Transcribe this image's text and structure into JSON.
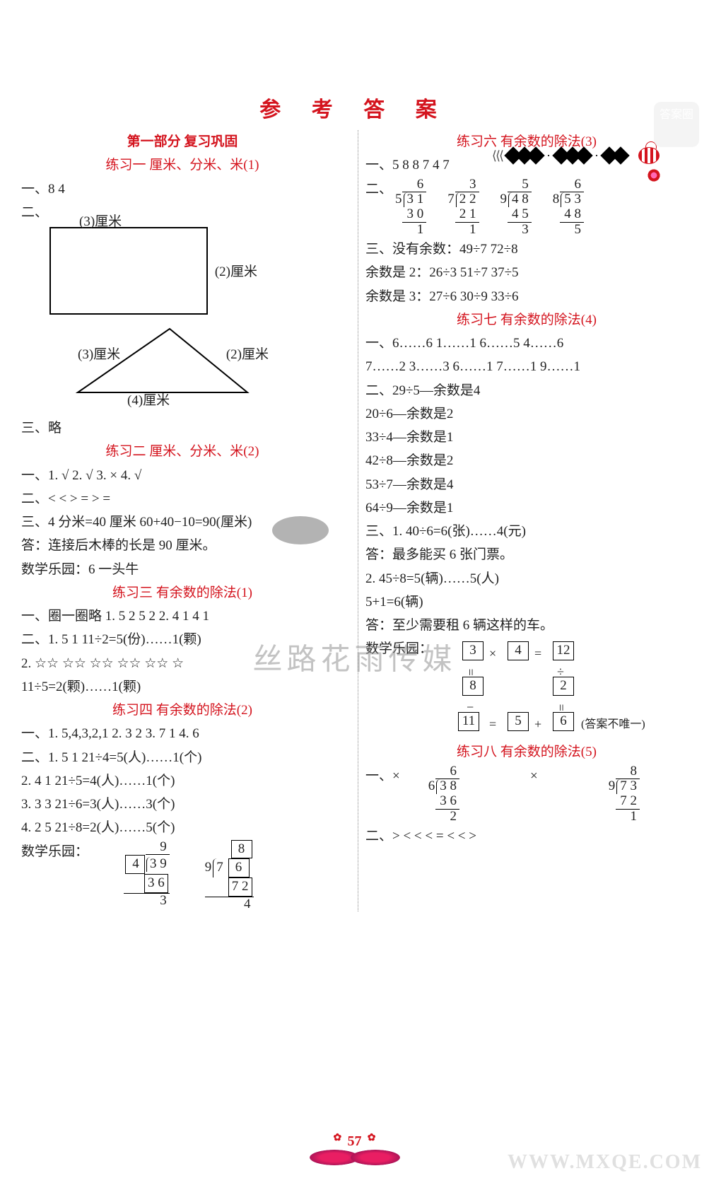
{
  "page": {
    "number": "57",
    "title": "参 考 答 案"
  },
  "watermarks": {
    "center": "丝路花雨传媒",
    "bottom_right": "WWW.MXQE.COM",
    "top_right": "答案圈"
  },
  "left": {
    "part_title": "第一部分  复习巩固",
    "ex1": {
      "title": "练习一  厘米、分米、米(1)",
      "l1": "一、8  4",
      "l2": "二、",
      "rect_top": "(3)厘米",
      "rect_right": "(2)厘米",
      "tri_left": "(3)厘米",
      "tri_right": "(2)厘米",
      "tri_bottom": "(4)厘米",
      "l3": "三、略"
    },
    "ex2": {
      "title": "练习二  厘米、分米、米(2)",
      "l1": "一、1. √  2. √  3. ×  4. √",
      "l2": "二、<  <  >  =  >  =",
      "l3": "三、4 分米=40 厘米  60+40−10=90(厘米)",
      "l4": "答：连接后木棒的长是 90 厘米。",
      "l5": "数学乐园：6  一头牛"
    },
    "ex3": {
      "title": "练习三  有余数的除法(1)",
      "l1": "一、圈一圈略  1. 5  2  5  2  2. 4  1  4  1",
      "l2": "二、1. 5  1  11÷2=5(份)……1(颗)",
      "l3": "2. ☆☆  ☆☆  ☆☆  ☆☆  ☆☆  ☆",
      "l4": "11÷5=2(颗)……1(颗)"
    },
    "ex4": {
      "title": "练习四  有余数的除法(2)",
      "l1": "一、1. 5,4,3,2,1  2. 3  2  3. 7  1  4. 6",
      "l2": "二、1. 5  1  21÷4=5(人)……1(个)",
      "l3": "2. 4  1  21÷5=4(人)……1(个)",
      "l4": "3. 3  3  21÷6=3(人)……3(个)",
      "l5": "4. 2  5  21÷8=2(人)……5(个)",
      "l6": "数学乐园：",
      "ld1": {
        "q": "9",
        "dvs": "4",
        "dvd": "3 9",
        "sub": "3 6",
        "rem": "3",
        "boxed_dvs": true,
        "boxed_sub": true
      },
      "ld2": {
        "q": "8",
        "dvs": "9",
        "dvd": "7 6",
        "sub": "7 2",
        "rem": "4",
        "boxed_q": true,
        "boxed_dvd_last": true,
        "boxed_sub": true
      }
    }
  },
  "right": {
    "ex6": {
      "title": "练习六  有余数的除法(3)",
      "l1": "一、5  8  8  7  4  7",
      "l2": "二、",
      "divs": [
        {
          "q": "6",
          "dvs": "5",
          "dvd": "3 1",
          "sub": "3 0",
          "rem": "1"
        },
        {
          "q": "3",
          "dvs": "7",
          "dvd": "2 2",
          "sub": "2 1",
          "rem": "1"
        },
        {
          "q": "5",
          "dvs": "9",
          "dvd": "4 8",
          "sub": "4 5",
          "rem": "3"
        },
        {
          "q": "6",
          "dvs": "8",
          "dvd": "5 3",
          "sub": "4 8",
          "rem": "5"
        }
      ],
      "l3": "三、没有余数：49÷7  72÷8",
      "l4": "余数是 2：26÷3  51÷7  37÷5",
      "l5": "余数是 3：27÷6  30÷9  33÷6"
    },
    "ex7": {
      "title": "练习七  有余数的除法(4)",
      "l1": "一、6……6  1……1  6……5  4……6",
      "l2": "7……2  3……3  6……1  7……1  9……1",
      "l3": "二、29÷5—余数是4",
      "l4": "20÷6—余数是2",
      "l5": "33÷4—余数是1",
      "l6": "42÷8—余数是2",
      "l7": "53÷7—余数是4",
      "l8": "64÷9—余数是1",
      "l9": "三、1. 40÷6=6(张)……4(元)",
      "l10": "答：最多能买 6 张门票。",
      "l11": "2. 45÷8=5(辆)……5(人)",
      "l12": "5+1=6(辆)",
      "l13": "答：至少需要租 6 辆这样的车。",
      "l14": "数学乐园：",
      "puzzle": {
        "a": "3",
        "b": "4",
        "c": "12",
        "d": "8",
        "e": "2",
        "f": "11",
        "g": "5",
        "h": "6",
        "note": "(答案不唯一)"
      }
    },
    "ex8": {
      "title": "练习八  有余数的除法(5)",
      "l1a": "一、×",
      "l1b": "×",
      "divs": [
        {
          "q": "6",
          "dvs": "6",
          "dvd": "3 8",
          "sub": "3 6",
          "rem": "2"
        },
        {
          "q": "8",
          "dvs": "9",
          "dvd": "7 3",
          "sub": "7 2",
          "rem": "1"
        }
      ],
      "l2": "二、>  <  <  <  =  <  <  >"
    }
  }
}
